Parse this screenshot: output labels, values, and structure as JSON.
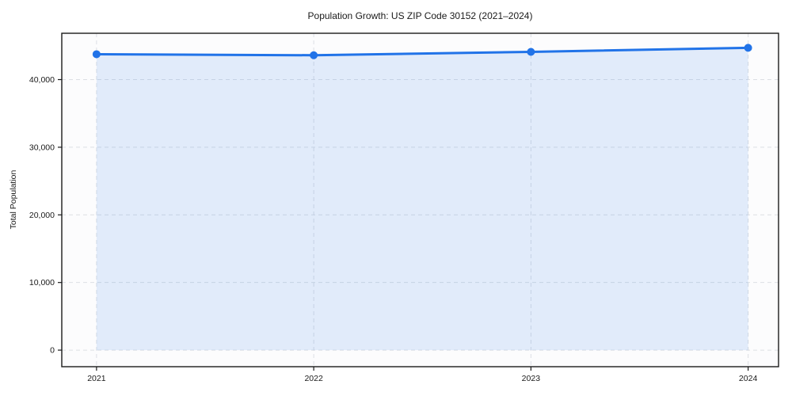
{
  "chart_data": {
    "type": "line",
    "title": "Population Growth: US ZIP Code 30152 (2021–2024)",
    "xlabel": "",
    "ylabel": "Total Population",
    "x": [
      2021,
      2022,
      2023,
      2024
    ],
    "xtick_labels": [
      "2021",
      "2022",
      "2023",
      "2024"
    ],
    "series": [
      {
        "name": "Total Population",
        "values": [
          43750,
          43600,
          44100,
          44700
        ]
      }
    ],
    "yticks": [
      0,
      10000,
      20000,
      30000,
      40000
    ],
    "ytick_labels": [
      "0",
      "10,000",
      "20,000",
      "30,000",
      "40,000"
    ],
    "xlim": [
      2020.84,
      2024.14
    ],
    "ylim": [
      -2450,
      46850
    ],
    "grid": "dashed",
    "legend_position": "none",
    "area_fill": true,
    "colors": {
      "line": "#2173e8",
      "marker": "#2173e8",
      "fill": "rgba(33,115,232,0.12)",
      "grid": "#dcdfe4",
      "spine": "#1a1a1a",
      "plot_background": "#fcfcfd",
      "figure_background": "#ffffff"
    }
  }
}
